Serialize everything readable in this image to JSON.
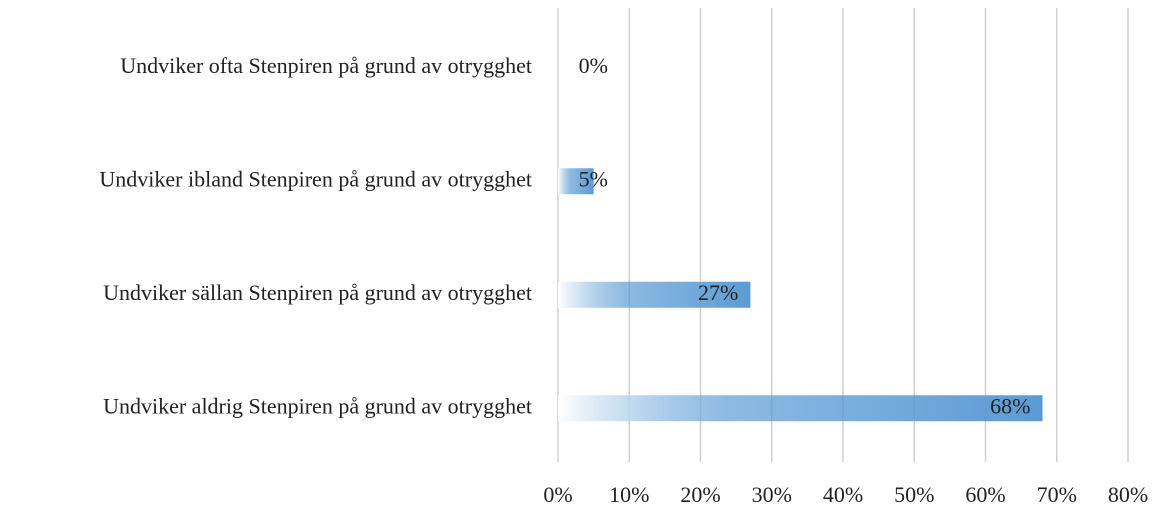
{
  "chart_data": {
    "type": "bar",
    "orientation": "horizontal",
    "categories": [
      "Undviker ofta Stenpiren på grund av otrygghet",
      "Undviker ibland Stenpiren på grund av otrygghet",
      "Undviker sällan Stenpiren på grund av otrygghet",
      "Undviker aldrig Stenpiren på grund av otrygghet"
    ],
    "values": [
      0,
      5,
      27,
      68
    ],
    "value_labels": [
      "0%",
      "5%",
      "27%",
      "68%"
    ],
    "color": "#5b9bd5",
    "xlim": [
      0,
      80
    ],
    "xticks": [
      {
        "value": 0,
        "label": "0%"
      },
      {
        "value": 10,
        "label": "10%"
      },
      {
        "value": 20,
        "label": "20%"
      },
      {
        "value": 30,
        "label": "30%"
      },
      {
        "value": 40,
        "label": "40%"
      },
      {
        "value": 50,
        "label": "50%"
      },
      {
        "value": 60,
        "label": "60%"
      },
      {
        "value": 70,
        "label": "70%"
      },
      {
        "value": 80,
        "label": "80%"
      }
    ],
    "grid": true
  }
}
